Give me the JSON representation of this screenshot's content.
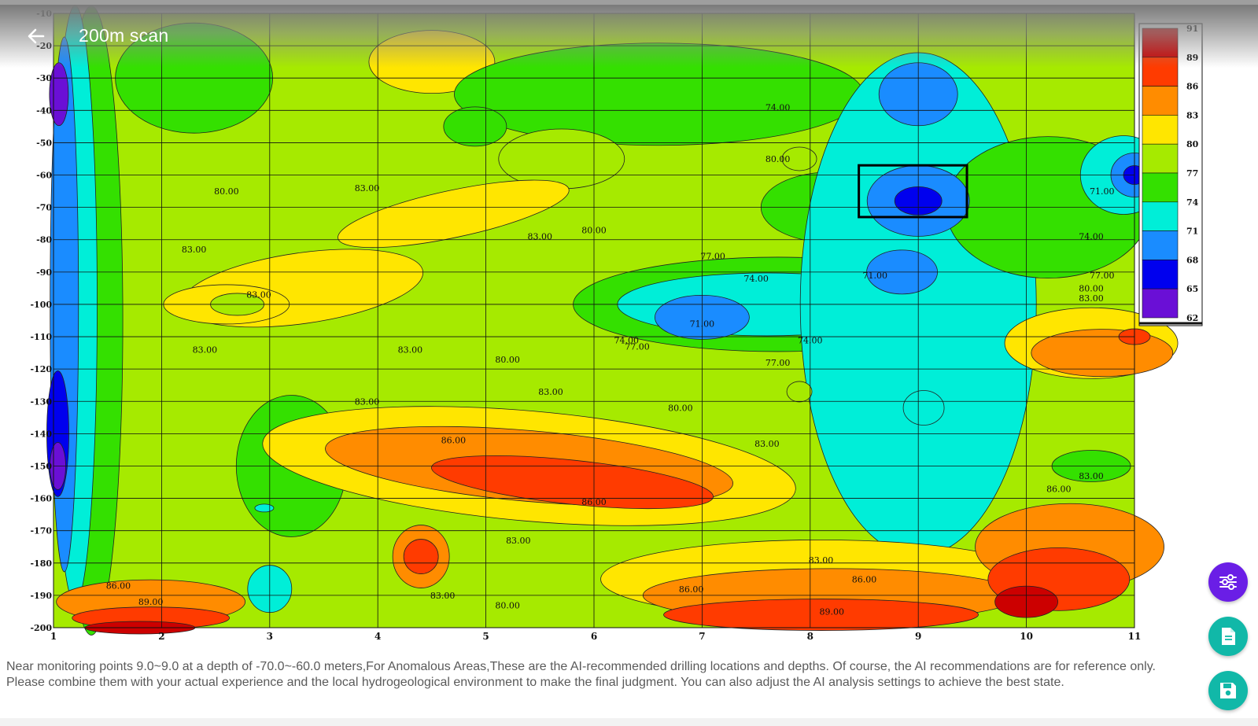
{
  "header": {
    "title": "200m scan",
    "back_icon": "arrow-left-icon"
  },
  "chart_data": {
    "type": "heatmap",
    "x_ticks": [
      "1",
      "2",
      "3",
      "4",
      "5",
      "6",
      "7",
      "8",
      "9",
      "10",
      "11"
    ],
    "y_ticks": [
      "-10",
      "-20",
      "-30",
      "-40",
      "-50",
      "-60",
      "-70",
      "-80",
      "-90",
      "-100",
      "-110",
      "-120",
      "-130",
      "-140",
      "-150",
      "-160",
      "-170",
      "-180",
      "-190",
      "-200"
    ],
    "xlim": [
      1,
      11
    ],
    "ylim": [
      -200,
      -10
    ],
    "value_range": [
      62,
      91
    ],
    "colorbar": {
      "labels": [
        "91",
        "89",
        "86",
        "83",
        "80",
        "77",
        "74",
        "71",
        "68",
        "65",
        "62"
      ],
      "colors": [
        "#cc0000",
        "#ff3b00",
        "#ff8c00",
        "#ffe600",
        "#a6ea00",
        "#34e000",
        "#00eed8",
        "#1a8cff",
        "#0000ee",
        "#6a0fd6"
      ]
    },
    "contour_labels": [
      {
        "text": "80.00",
        "x": 2.6,
        "y": -66
      },
      {
        "text": "83.00",
        "x": 2.3,
        "y": -84
      },
      {
        "text": "83.00",
        "x": 2.4,
        "y": -115
      },
      {
        "text": "83.00",
        "x": 2.9,
        "y": -98
      },
      {
        "text": "83.00",
        "x": 3.9,
        "y": -65
      },
      {
        "text": "83.00",
        "x": 4.3,
        "y": -115
      },
      {
        "text": "83.00",
        "x": 5.5,
        "y": -80
      },
      {
        "text": "83.00",
        "x": 5.6,
        "y": -128
      },
      {
        "text": "83.00",
        "x": 3.9,
        "y": -131
      },
      {
        "text": "80.00",
        "x": 5.2,
        "y": -118
      },
      {
        "text": "80.00",
        "x": 6.0,
        "y": -78
      },
      {
        "text": "80.00",
        "x": 7.7,
        "y": -56
      },
      {
        "text": "80.00",
        "x": 6.8,
        "y": -133
      },
      {
        "text": "77.00",
        "x": 7.1,
        "y": -86
      },
      {
        "text": "77.00",
        "x": 6.4,
        "y": -114
      },
      {
        "text": "77.00",
        "x": 7.7,
        "y": -119
      },
      {
        "text": "74.00",
        "x": 7.5,
        "y": -93
      },
      {
        "text": "74.00",
        "x": 6.3,
        "y": -112
      },
      {
        "text": "74.00",
        "x": 8.0,
        "y": -112
      },
      {
        "text": "71.00",
        "x": 7.0,
        "y": -107
      },
      {
        "text": "71.00",
        "x": 8.6,
        "y": -92
      },
      {
        "text": "86.00",
        "x": 4.7,
        "y": -143
      },
      {
        "text": "86.00",
        "x": 6.0,
        "y": -162
      },
      {
        "text": "86.00",
        "x": 1.6,
        "y": -188
      },
      {
        "text": "86.00",
        "x": 6.9,
        "y": -189
      },
      {
        "text": "86.00",
        "x": 8.5,
        "y": -186
      },
      {
        "text": "86.00",
        "x": 10.3,
        "y": -158
      },
      {
        "text": "89.00",
        "x": 1.9,
        "y": -193
      },
      {
        "text": "89.00",
        "x": 8.2,
        "y": -196
      },
      {
        "text": "83.00",
        "x": 7.6,
        "y": -144
      },
      {
        "text": "83.00",
        "x": 10.6,
        "y": -154
      },
      {
        "text": "83.00",
        "x": 10.6,
        "y": -99
      },
      {
        "text": "83.00",
        "x": 8.1,
        "y": -180
      },
      {
        "text": "83.00",
        "x": 5.3,
        "y": -174
      },
      {
        "text": "83.00",
        "x": 4.6,
        "y": -191
      },
      {
        "text": "80.00",
        "x": 5.2,
        "y": -194
      },
      {
        "text": "80.00",
        "x": 10.6,
        "y": -96
      },
      {
        "text": "77.00",
        "x": 10.7,
        "y": -92
      },
      {
        "text": "74.00",
        "x": 7.7,
        "y": -40
      },
      {
        "text": "71.00",
        "x": 10.7,
        "y": -66
      },
      {
        "text": "74.00",
        "x": 10.6,
        "y": -80
      }
    ],
    "highlight_box": {
      "x": [
        8.45,
        9.45
      ],
      "y": [
        -57,
        -73
      ]
    }
  },
  "description": "Near monitoring points 9.0~9.0 at a depth of -70.0~-60.0 meters,For Anomalous Areas,These are the AI-recommended drilling locations and depths. Of course, the AI recommendations are for reference only. Please combine them with your actual experience and the local hydrogeological environment to make the final judgment. You can also adjust the AI analysis settings to achieve the best state.",
  "fabs": {
    "settings_icon": "sliders-icon",
    "report_icon": "document-icon",
    "save_icon": "floppy-disk-icon"
  }
}
